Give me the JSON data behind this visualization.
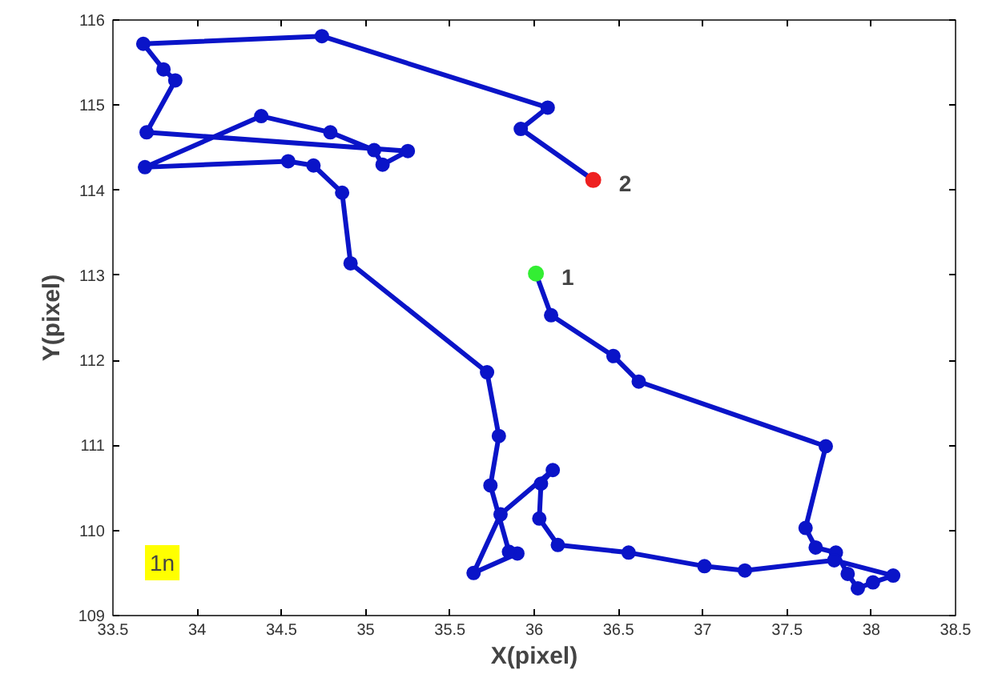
{
  "chart_data": {
    "type": "line",
    "xlabel": "X(pixel)",
    "ylabel": "Y(pixel)",
    "xlim": [
      33.5,
      38.5
    ],
    "xticks": [
      33.5,
      34,
      34.5,
      35,
      35.5,
      36,
      36.5,
      37,
      37.5,
      38,
      38.5
    ],
    "ylim": [
      109,
      116
    ],
    "yticks": [
      109,
      110,
      111,
      112,
      113,
      114,
      115,
      116
    ],
    "grid": false,
    "marker": "circle",
    "line_style": "solid",
    "series": [
      {
        "color": "#0a14c8",
        "x": [
          36.01,
          36.1,
          36.47,
          36.62,
          37.73,
          37.61,
          37.67,
          37.79,
          37.86,
          37.92,
          38.01,
          38.13,
          37.78,
          37.25,
          37.01,
          36.56,
          36.14,
          36.03,
          36.04,
          36.11,
          35.8,
          35.64,
          35.9,
          35.85,
          35.74,
          35.79,
          35.72,
          34.91,
          34.86,
          34.69,
          34.54,
          33.69,
          34.38,
          34.79,
          35.05,
          35.1,
          35.25,
          33.7,
          33.87,
          33.8,
          33.68,
          34.74,
          36.08,
          35.92,
          36.35
        ],
        "values": [
          113.02,
          112.53,
          112.05,
          111.75,
          110.99,
          110.03,
          109.8,
          109.74,
          109.49,
          109.32,
          109.39,
          109.47,
          109.65,
          109.53,
          109.58,
          109.74,
          109.83,
          110.14,
          110.55,
          110.71,
          110.19,
          109.5,
          109.73,
          109.75,
          110.53,
          111.11,
          111.86,
          113.14,
          113.97,
          114.29,
          114.34,
          114.27,
          114.87,
          114.68,
          114.47,
          114.3,
          114.46,
          114.68,
          115.29,
          115.42,
          115.72,
          115.81,
          114.97,
          114.72,
          114.12
        ]
      },
      {
        "type": "scatter",
        "color": "#33ee33",
        "x": [
          36.01
        ],
        "values": [
          113.02
        ]
      },
      {
        "type": "scatter",
        "color": "#ee2020",
        "x": [
          36.35
        ],
        "values": [
          114.12
        ]
      }
    ],
    "annotations": [
      {
        "text": "1",
        "x": 36.01,
        "y": 113.02
      },
      {
        "text": "2",
        "x": 36.35,
        "y": 114.12
      },
      "1n"
    ]
  }
}
